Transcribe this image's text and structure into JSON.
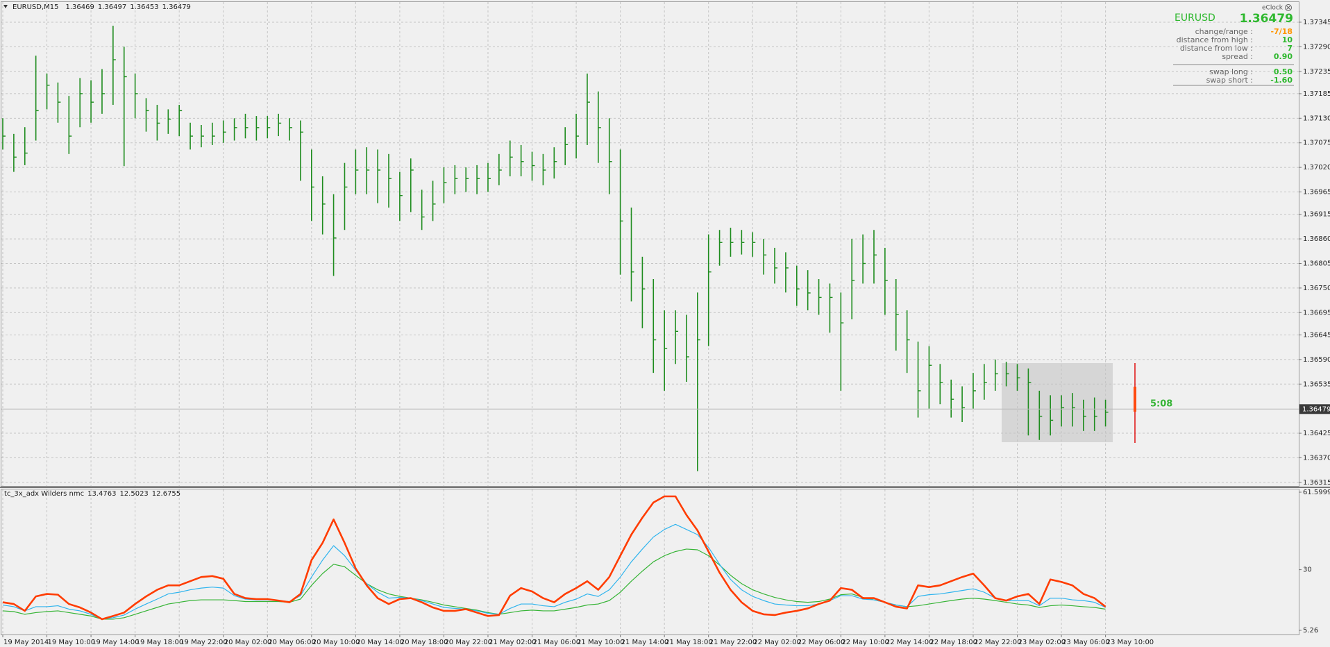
{
  "header": {
    "symbol": "EURUSD,M15",
    "ohlc": [
      1.36469,
      1.36497,
      1.36453,
      1.36479
    ]
  },
  "info_panel": {
    "brand": "eClock",
    "symbol": "EURUSD",
    "price": "1.36479",
    "rows": [
      {
        "label": "change/range :",
        "value": "-7/18"
      },
      {
        "label": "distance from high :",
        "value": "10"
      },
      {
        "label": "distance from low :",
        "value": "7"
      },
      {
        "label": "spread :",
        "value": "0.90"
      },
      {
        "label": "swap long :",
        "value": "0.50"
      },
      {
        "label": "swap short :",
        "value": "-1.60"
      }
    ]
  },
  "timer": "5:08",
  "chart_data": [
    {
      "type": "ohlc",
      "color": "#1e8c1e",
      "grid": true,
      "last_price": 1.36479,
      "categories": [
        "19 May 2014",
        null,
        null,
        null,
        "19 May 10:00",
        null,
        null,
        null,
        "19 May 14:00",
        null,
        null,
        null,
        "19 May 18:00",
        null,
        null,
        null,
        "19 May 22:00",
        null,
        null,
        null,
        "20 May 02:00",
        null,
        null,
        null,
        "20 May 06:00",
        null,
        null,
        null,
        "20 May 10:00",
        null,
        null,
        null,
        "20 May 14:00",
        null,
        null,
        null,
        "20 May 18:00",
        null,
        null,
        null,
        "20 May 22:00",
        null,
        null,
        null,
        "21 May 02:00",
        null,
        null,
        null,
        "21 May 06:00",
        null,
        null,
        null,
        "21 May 10:00",
        null,
        null,
        null,
        "21 May 14:00",
        null,
        null,
        null,
        "21 May 18:00",
        null,
        null,
        null,
        "21 May 22:00",
        null,
        null,
        null,
        "22 May 02:00",
        null,
        null,
        null,
        "22 May 06:00",
        null,
        null,
        null,
        "22 May 10:00",
        null,
        null,
        null,
        "22 May 14:00",
        null,
        null,
        null,
        "22 May 18:00",
        null,
        null,
        null,
        "22 May 22:00",
        null,
        null,
        null,
        "23 May 02:00",
        null,
        null,
        null,
        "23 May 06:00",
        null,
        null,
        null,
        "23 May 10:00"
      ],
      "high": [
        1.3713,
        1.37095,
        1.3711,
        1.3727,
        1.3723,
        1.3721,
        1.3718,
        1.3722,
        1.37215,
        1.3724,
        1.37337,
        1.3729,
        1.3723,
        1.37175,
        1.3716,
        1.3715,
        1.3716,
        1.3712,
        1.37115,
        1.3712,
        1.37125,
        1.3713,
        1.3714,
        1.37135,
        1.37135,
        1.3714,
        1.3713,
        1.37125,
        1.3706,
        1.37,
        1.3696,
        1.3703,
        1.3706,
        1.37065,
        1.3706,
        1.3705,
        1.3701,
        1.3704,
        1.3697,
        1.3699,
        1.3702,
        1.37025,
        1.3702,
        1.37025,
        1.3703,
        1.3705,
        1.3708,
        1.3707,
        1.37055,
        1.3705,
        1.37065,
        1.3711,
        1.3714,
        1.3723,
        1.3719,
        1.3713,
        1.3706,
        1.3693,
        1.3682,
        1.3677,
        1.367,
        1.367,
        1.3669,
        1.3674,
        1.3687,
        1.3688,
        1.36885,
        1.3688,
        1.36875,
        1.3686,
        1.3684,
        1.3683,
        1.368,
        1.3679,
        1.3677,
        1.3676,
        1.3674,
        1.3686,
        1.3687,
        1.3688,
        1.3684,
        1.3677,
        1.367,
        1.3663,
        1.3662,
        1.3658,
        1.36545,
        1.3653,
        1.3656,
        1.3658,
        1.3659,
        1.36585,
        1.3658,
        1.3657,
        1.3652,
        1.3651,
        1.3651,
        1.36515,
        1.365,
        1.36505,
        1.365
      ],
      "low": [
        1.3706,
        1.3701,
        1.37025,
        1.3708,
        1.3715,
        1.3712,
        1.3705,
        1.3711,
        1.3712,
        1.3714,
        1.3716,
        1.37023,
        1.3713,
        1.371,
        1.3708,
        1.37095,
        1.3709,
        1.3706,
        1.37065,
        1.3707,
        1.37075,
        1.3708,
        1.37085,
        1.3708,
        1.37085,
        1.3709,
        1.3708,
        1.3699,
        1.369,
        1.3687,
        1.36777,
        1.3688,
        1.3696,
        1.3696,
        1.3694,
        1.3693,
        1.369,
        1.3692,
        1.3688,
        1.369,
        1.3694,
        1.3696,
        1.36965,
        1.3696,
        1.36965,
        1.3698,
        1.37,
        1.37,
        1.3699,
        1.3698,
        1.36995,
        1.37025,
        1.3704,
        1.3707,
        1.3703,
        1.3696,
        1.3678,
        1.3672,
        1.3666,
        1.3656,
        1.3652,
        1.3658,
        1.3654,
        1.3634,
        1.3662,
        1.368,
        1.3682,
        1.36825,
        1.3682,
        1.3678,
        1.3676,
        1.3674,
        1.3671,
        1.367,
        1.3669,
        1.3665,
        1.3652,
        1.3668,
        1.3676,
        1.3676,
        1.3669,
        1.3661,
        1.3656,
        1.3646,
        1.3648,
        1.3649,
        1.3646,
        1.3645,
        1.3648,
        1.365,
        1.3652,
        1.3653,
        1.3652,
        1.3642,
        1.3641,
        1.3642,
        1.3644,
        1.3644,
        1.3643,
        1.3643,
        1.3644
      ],
      "close": [
        1.3709,
        1.37043,
        1.37052,
        1.37147,
        1.37204,
        1.37166,
        1.3709,
        1.37185,
        1.37166,
        1.37185,
        1.37261,
        1.37223,
        1.37185,
        1.37147,
        1.37119,
        1.37128,
        1.37147,
        1.3709,
        1.3709,
        1.3709,
        1.37099,
        1.37109,
        1.37109,
        1.37109,
        1.37109,
        1.37119,
        1.37109,
        1.37099,
        1.36976,
        1.36938,
        1.36862,
        1.36976,
        1.37014,
        1.37014,
        1.37014,
        1.36995,
        1.36957,
        1.37014,
        1.36909,
        1.36938,
        1.36986,
        1.36995,
        1.36995,
        1.36995,
        1.36995,
        1.37014,
        1.37043,
        1.37033,
        1.37024,
        1.37014,
        1.37033,
        1.37071,
        1.3709,
        1.37166,
        1.37109,
        1.37033,
        1.369,
        1.36786,
        1.36748,
        1.36634,
        1.36615,
        1.36653,
        1.36596,
        1.36634,
        1.36786,
        1.36852,
        1.36852,
        1.36852,
        1.36852,
        1.36824,
        1.36795,
        1.36795,
        1.36748,
        1.36739,
        1.36729,
        1.36729,
        1.36672,
        1.36767,
        1.36805,
        1.36824,
        1.36767,
        1.36691,
        1.36634,
        1.3652,
        1.36577,
        1.36539,
        1.36501,
        1.36482,
        1.3652,
        1.36539,
        1.36558,
        1.36558,
        1.36549,
        1.36539,
        1.36463,
        1.36454,
        1.36482,
        1.36482,
        1.36463,
        1.36463,
        1.36472
      ],
      "ylim": [
        1.36307,
        1.3739
      ],
      "yticks": [
        1.37345,
        {
          "value": 1.3729,
          "label": "1.37290"
        },
        1.37235,
        1.37185,
        {
          "value": 1.3713,
          "label": "1.37130"
        },
        1.37075,
        {
          "value": 1.3702,
          "label": "1.37020"
        },
        1.36965,
        1.36915,
        {
          "value": 1.3686,
          "label": "1.36860"
        },
        1.36805,
        {
          "value": 1.3675,
          "label": "1.36750"
        },
        1.36695,
        1.36645,
        {
          "value": 1.3659,
          "label": "1.36590"
        },
        1.36535,
        1.36425,
        {
          "value": 1.3637,
          "label": "1.36370"
        },
        1.36315
      ]
    },
    {
      "type": "line",
      "title": "tc_3x_adx Wilders nmc",
      "current_values": [
        13.4763,
        12.5023,
        12.6755
      ],
      "ylim": [
        5.26,
        61.5999
      ],
      "yticks": [
        61.5999,
        30,
        5.26
      ],
      "series": [
        {
          "color": "#ff3c00",
          "values": [
            16.7,
            16.0,
            13.2,
            19.1,
            20.1,
            19.8,
            16.0,
            14.6,
            12.5,
            9.8,
            11.1,
            12.5,
            16.0,
            19.1,
            21.8,
            23.6,
            23.6,
            25.3,
            27.0,
            27.4,
            26.3,
            20.1,
            18.4,
            18.0,
            18.0,
            17.4,
            16.7,
            20.1,
            33.9,
            40.9,
            50.5,
            40.9,
            30.5,
            23.6,
            18.4,
            16.0,
            18.0,
            18.4,
            16.7,
            14.6,
            13.2,
            13.2,
            13.9,
            12.5,
            11.1,
            11.5,
            19.4,
            22.5,
            21.1,
            18.4,
            16.7,
            20.1,
            22.5,
            25.3,
            21.8,
            27.0,
            35.7,
            44.3,
            51.2,
            57.4,
            59.9,
            59.9,
            52.3,
            46.0,
            37.4,
            28.8,
            21.8,
            16.7,
            13.2,
            11.8,
            11.5,
            12.5,
            13.2,
            14.2,
            16.0,
            17.4,
            22.5,
            21.8,
            18.4,
            18.4,
            16.7,
            14.9,
            14.2,
            23.6,
            22.9,
            23.6,
            25.3,
            27.0,
            28.4,
            23.6,
            18.4,
            17.4,
            19.1,
            20.1,
            16.0,
            26.0,
            25.0,
            23.6,
            20.1,
            18.4,
            14.9
          ]
        },
        {
          "color": "#2fb4ee",
          "values": [
            15.6,
            14.9,
            13.2,
            14.9,
            14.9,
            15.3,
            13.9,
            13.2,
            11.8,
            9.8,
            10.4,
            11.5,
            13.9,
            16.0,
            18.0,
            20.1,
            20.8,
            21.8,
            22.5,
            22.9,
            22.5,
            19.4,
            18.0,
            17.7,
            17.7,
            17.4,
            17.0,
            19.4,
            27.0,
            33.9,
            39.8,
            35.7,
            29.8,
            24.3,
            20.8,
            18.4,
            18.7,
            18.4,
            17.4,
            16.0,
            14.6,
            14.2,
            13.9,
            13.2,
            12.2,
            11.8,
            14.2,
            16.0,
            16.0,
            15.3,
            14.9,
            16.7,
            18.0,
            20.1,
            19.1,
            21.8,
            27.0,
            33.2,
            38.4,
            43.3,
            46.4,
            48.5,
            46.4,
            44.3,
            39.1,
            32.2,
            26.0,
            21.8,
            19.1,
            17.4,
            16.0,
            15.6,
            15.3,
            15.3,
            16.0,
            17.4,
            19.4,
            19.4,
            18.0,
            17.7,
            16.7,
            15.6,
            14.9,
            19.1,
            19.8,
            20.1,
            20.8,
            21.5,
            22.2,
            20.8,
            18.4,
            17.4,
            17.4,
            17.4,
            15.3,
            18.4,
            18.4,
            17.7,
            17.4,
            16.7,
            14.6
          ]
        },
        {
          "color": "#36b436",
          "values": [
            13.2,
            12.9,
            11.8,
            12.5,
            12.9,
            13.2,
            12.5,
            11.8,
            11.1,
            9.8,
            9.8,
            10.4,
            11.8,
            13.2,
            14.6,
            16.0,
            16.7,
            17.4,
            17.7,
            17.7,
            17.7,
            17.4,
            17.0,
            17.0,
            17.0,
            17.0,
            16.7,
            18.0,
            23.6,
            28.4,
            32.2,
            31.2,
            27.7,
            24.3,
            21.8,
            20.1,
            19.1,
            18.4,
            17.7,
            16.7,
            15.6,
            14.9,
            14.2,
            13.5,
            12.5,
            11.8,
            12.5,
            13.2,
            13.5,
            13.2,
            13.2,
            13.9,
            14.6,
            15.6,
            16.0,
            17.4,
            20.8,
            25.3,
            29.4,
            33.2,
            35.7,
            37.4,
            38.4,
            38.1,
            35.7,
            31.9,
            27.7,
            24.3,
            21.8,
            20.1,
            18.7,
            17.7,
            17.0,
            16.7,
            17.0,
            18.0,
            19.8,
            20.1,
            18.7,
            17.7,
            16.7,
            15.6,
            14.9,
            15.3,
            16.0,
            16.7,
            17.4,
            18.0,
            18.4,
            18.0,
            17.4,
            16.7,
            16.0,
            15.6,
            14.6,
            15.3,
            15.6,
            15.3,
            14.9,
            14.6,
            13.9
          ]
        }
      ]
    }
  ]
}
